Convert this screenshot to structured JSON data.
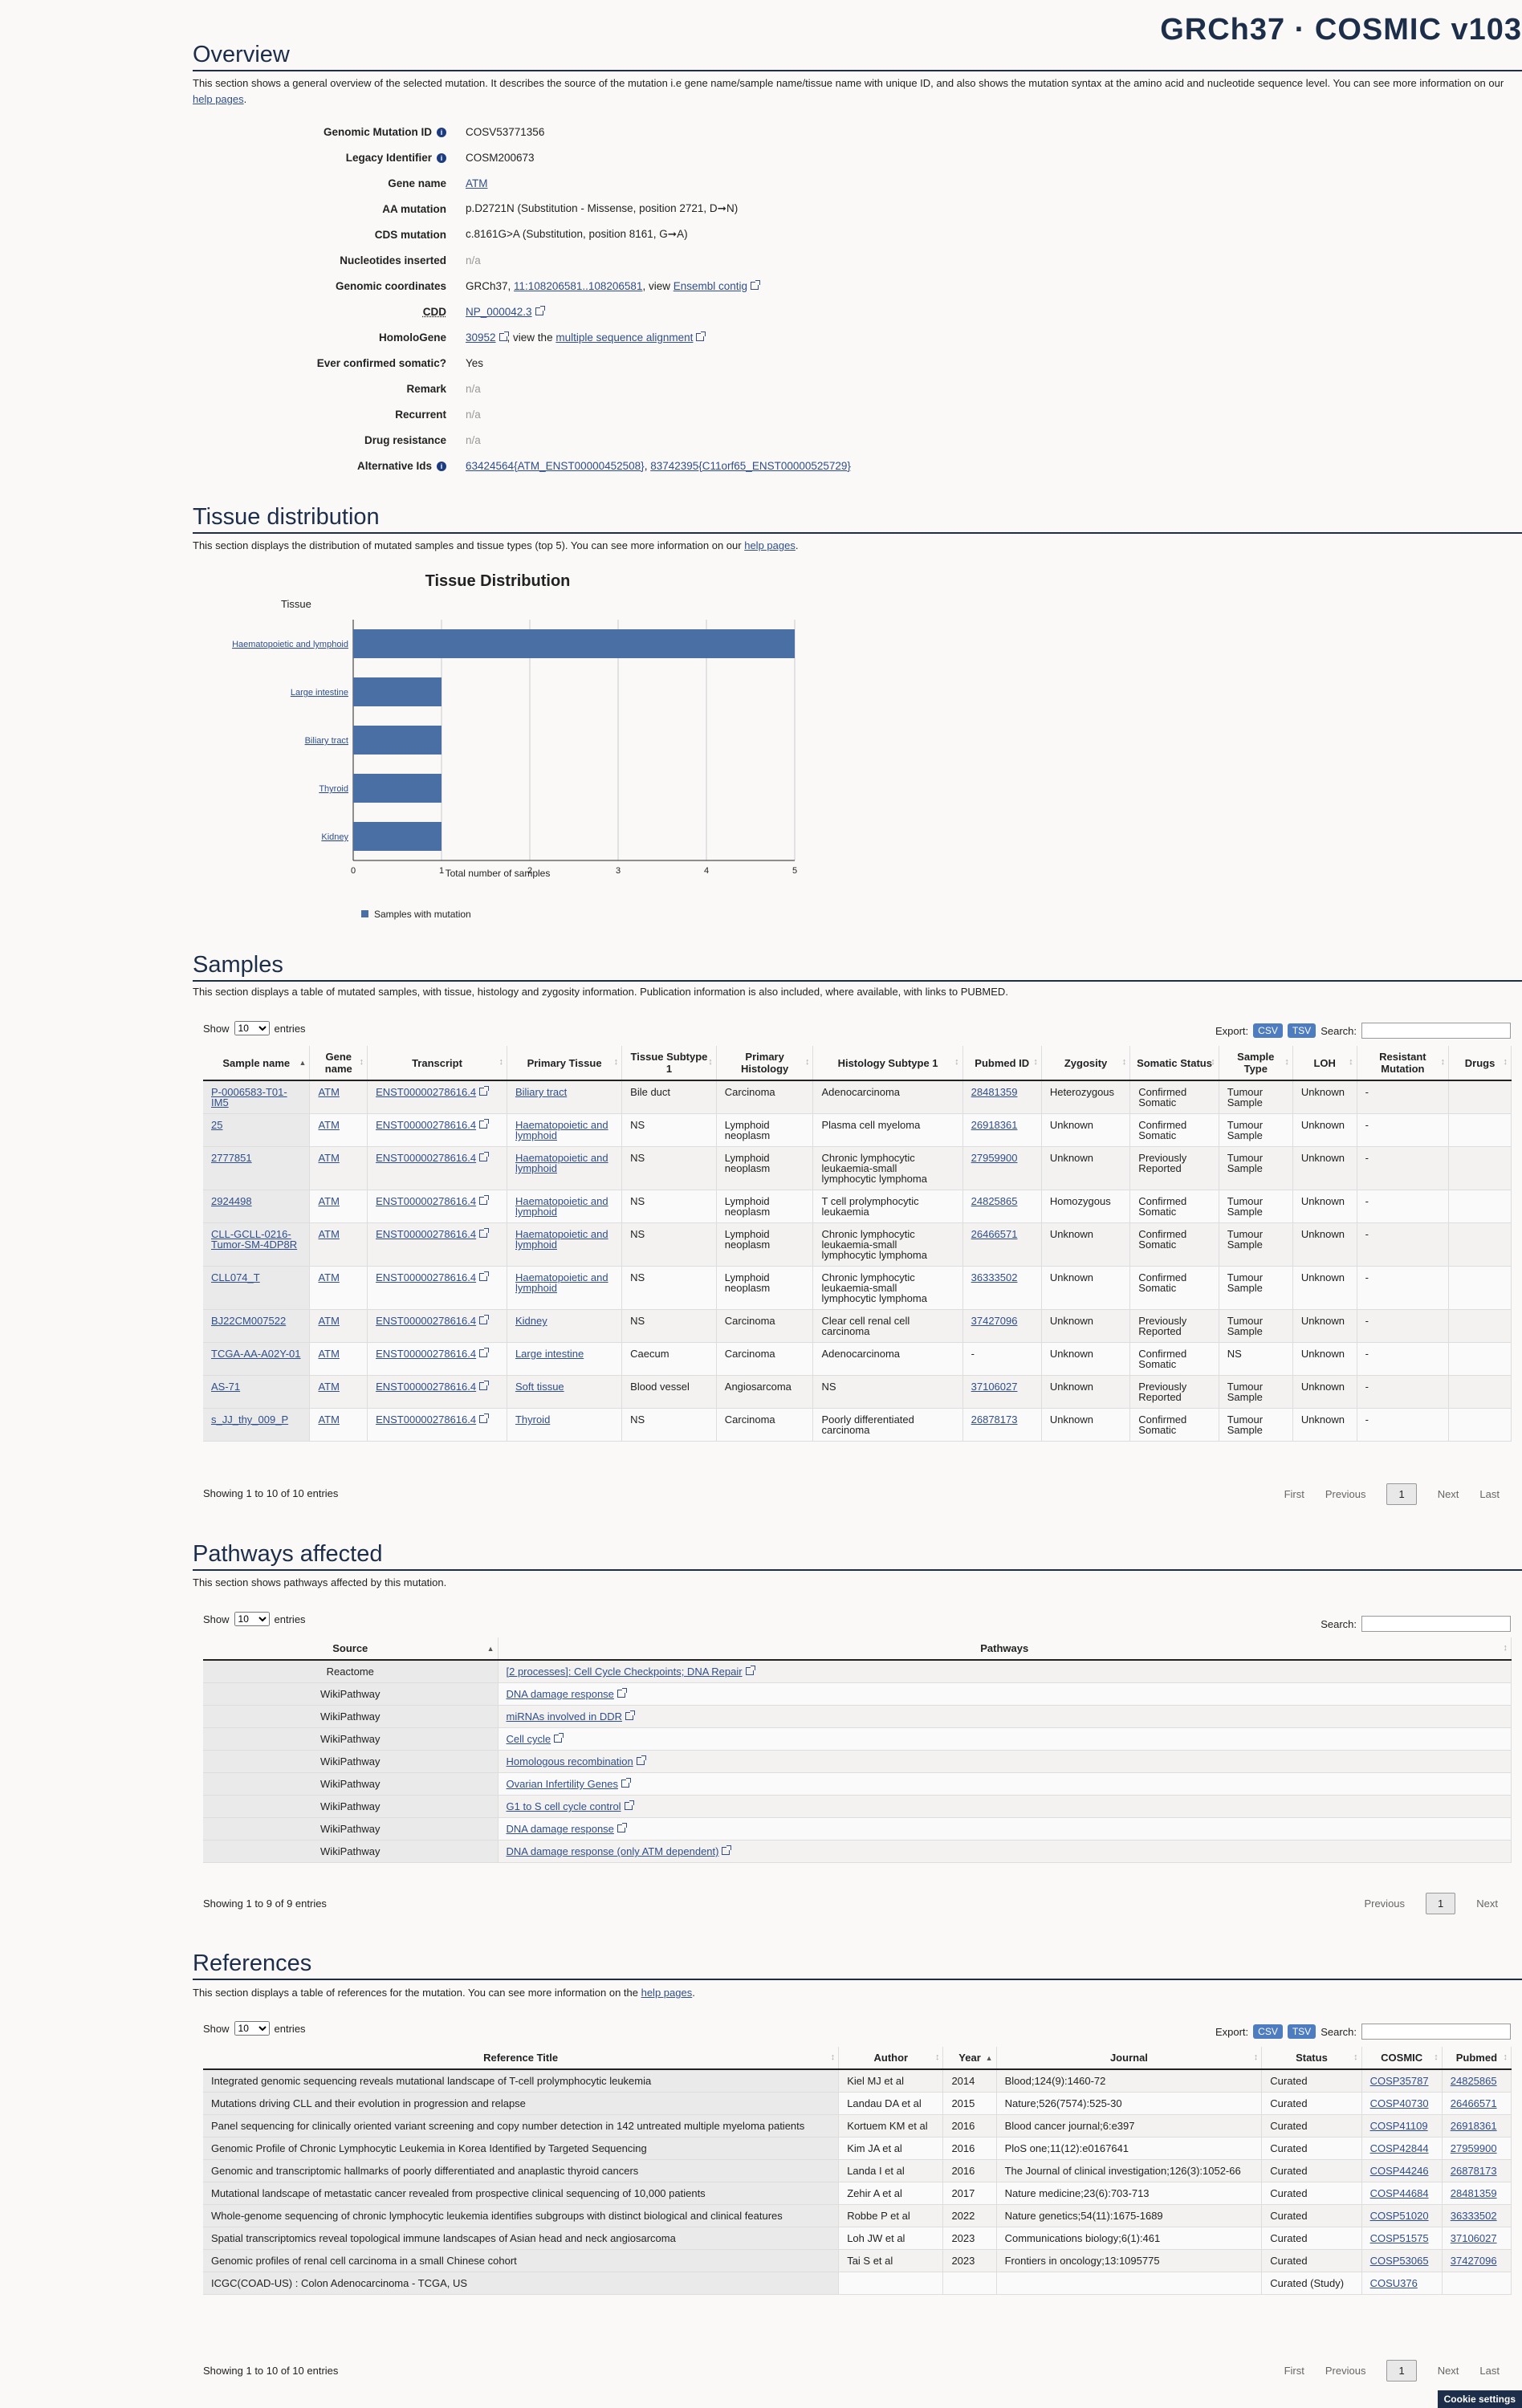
{
  "brand": "GRCh37 · COSMIC v103",
  "overview": {
    "title": "Overview",
    "description": "This section shows a general overview of the selected mutation. It describes the source of the mutation i.e gene name/sample name/tissue name with unique ID, and also shows the mutation syntax at the amino acid and nucleotide sequence level. You can see more information on our ",
    "help_link": "help pages",
    "genomic_mutation_id_label": "Genomic Mutation ID",
    "genomic_mutation_id": "COSV53771356",
    "legacy_identifier_label": "Legacy Identifier",
    "legacy_identifier": "COSM200673",
    "gene_name_label": "Gene name",
    "gene_name": "ATM",
    "aa_mutation_label": "AA mutation",
    "aa_mutation": "p.D2721N (Substitution - Missense, position 2721, D➞N)",
    "cds_mutation_label": "CDS mutation",
    "cds_mutation": "c.8161G>A (Substitution, position 8161, G➞A)",
    "nucleotides_inserted_label": "Nucleotides inserted",
    "nucleotides_inserted": "n/a",
    "genomic_coordinates_label": "Genomic coordinates",
    "genomic_coordinates_prefix": "GRCh37, ",
    "genomic_coordinates_link": "11:108206581..108206581",
    "genomic_coordinates_mid": ", view ",
    "ensembl_link": "Ensembl contig",
    "cdd_label": "CDD",
    "cdd_link": "NP_000042.3",
    "homologene_label": "HomoloGene",
    "homologene_link": "30952",
    "homologene_mid": ", view the ",
    "msa_link": "multiple sequence alignment",
    "ever_confirmed_label": "Ever confirmed somatic?",
    "ever_confirmed": "Yes",
    "remark_label": "Remark",
    "remark": "n/a",
    "recurrent_label": "Recurrent",
    "recurrent": "n/a",
    "drug_resistance_label": "Drug resistance",
    "drug_resistance": "n/a",
    "alternative_ids_label": "Alternative Ids",
    "alternative_id_1": "63424564{ATM_ENST00000452508}",
    "alternative_id_sep": ", ",
    "alternative_id_2": "83742395{C11orf65_ENST00000525729}"
  },
  "tissue": {
    "title": "Tissue distribution",
    "description": "This section displays the distribution of mutated samples and tissue types (top 5). You can see more information on our ",
    "help_link": "help pages",
    "period": "."
  },
  "chart_data": {
    "type": "bar",
    "orientation": "horizontal",
    "title": "Tissue Distribution",
    "ylabel": "Tissue",
    "xlabel": "Total number of samples",
    "categories": [
      "Haematopoietic and lymphoid",
      "Large intestine",
      "Biliary tract",
      "Thyroid",
      "Kidney"
    ],
    "series": [
      {
        "name": "Samples with mutation",
        "values": [
          5,
          1,
          1,
          1,
          1
        ]
      }
    ],
    "xlim": [
      0,
      5
    ],
    "ticks": [
      "0",
      "1",
      "2",
      "3",
      "4",
      "5"
    ],
    "legend_position": "bottom-left",
    "color": "#4a6fa5"
  },
  "samples": {
    "title": "Samples",
    "description": "This section displays a table of mutated samples, with tissue, histology and zygosity information. Publication information is also included, where available, with links to PUBMED.",
    "show": "Show",
    "entries": "entries",
    "page_size": "10",
    "export": "Export:",
    "csv": "CSV",
    "tsv": "TSV",
    "search": "Search:",
    "columns": [
      "Sample name",
      "Gene name",
      "Transcript",
      "Primary Tissue",
      "Tissue Subtype 1",
      "Primary Histology",
      "Histology Subtype 1",
      "Pubmed ID",
      "Zygosity",
      "Somatic Status",
      "Sample Type",
      "LOH",
      "Resistant Mutation",
      "Drugs"
    ],
    "rows": [
      [
        "P-0006583-T01-IM5",
        "ATM",
        "ENST00000278616.4",
        "Biliary tract",
        "Bile duct",
        "Carcinoma",
        "Adenocarcinoma",
        "28481359",
        "Heterozygous",
        "Confirmed Somatic",
        "Tumour Sample",
        "Unknown",
        "-",
        ""
      ],
      [
        "25",
        "ATM",
        "ENST00000278616.4",
        "Haematopoietic and lymphoid",
        "NS",
        "Lymphoid neoplasm",
        "Plasma cell myeloma",
        "26918361",
        "Unknown",
        "Confirmed Somatic",
        "Tumour Sample",
        "Unknown",
        "-",
        ""
      ],
      [
        "2777851",
        "ATM",
        "ENST00000278616.4",
        "Haematopoietic and lymphoid",
        "NS",
        "Lymphoid neoplasm",
        "Chronic lymphocytic leukaemia-small lymphocytic lymphoma",
        "27959900",
        "Unknown",
        "Previously Reported",
        "Tumour Sample",
        "Unknown",
        "-",
        ""
      ],
      [
        "2924498",
        "ATM",
        "ENST00000278616.4",
        "Haematopoietic and lymphoid",
        "NS",
        "Lymphoid neoplasm",
        "T cell prolymphocytic leukaemia",
        "24825865",
        "Homozygous",
        "Confirmed Somatic",
        "Tumour Sample",
        "Unknown",
        "-",
        ""
      ],
      [
        "CLL-GCLL-0216-Tumor-SM-4DP8R",
        "ATM",
        "ENST00000278616.4",
        "Haematopoietic and lymphoid",
        "NS",
        "Lymphoid neoplasm",
        "Chronic lymphocytic leukaemia-small lymphocytic lymphoma",
        "26466571",
        "Unknown",
        "Confirmed Somatic",
        "Tumour Sample",
        "Unknown",
        "-",
        ""
      ],
      [
        "CLL074_T",
        "ATM",
        "ENST00000278616.4",
        "Haematopoietic and lymphoid",
        "NS",
        "Lymphoid neoplasm",
        "Chronic lymphocytic leukaemia-small lymphocytic lymphoma",
        "36333502",
        "Unknown",
        "Confirmed Somatic",
        "Tumour Sample",
        "Unknown",
        "-",
        ""
      ],
      [
        "BJ22CM007522",
        "ATM",
        "ENST00000278616.4",
        "Kidney",
        "NS",
        "Carcinoma",
        "Clear cell renal cell carcinoma",
        "37427096",
        "Unknown",
        "Previously Reported",
        "Tumour Sample",
        "Unknown",
        "-",
        ""
      ],
      [
        "TCGA-AA-A02Y-01",
        "ATM",
        "ENST00000278616.4",
        "Large intestine",
        "Caecum",
        "Carcinoma",
        "Adenocarcinoma",
        "-",
        "Unknown",
        "Confirmed Somatic",
        "NS",
        "Unknown",
        "-",
        ""
      ],
      [
        "AS-71",
        "ATM",
        "ENST00000278616.4",
        "Soft tissue",
        "Blood vessel",
        "Angiosarcoma",
        "NS",
        "37106027",
        "Unknown",
        "Previously Reported",
        "Tumour Sample",
        "Unknown",
        "-",
        ""
      ],
      [
        "s_JJ_thy_009_P",
        "ATM",
        "ENST00000278616.4",
        "Thyroid",
        "NS",
        "Carcinoma",
        "Poorly differentiated carcinoma",
        "26878173",
        "Unknown",
        "Confirmed Somatic",
        "Tumour Sample",
        "Unknown",
        "-",
        ""
      ]
    ],
    "info": "Showing 1 to 10 of 10 entries",
    "pager": {
      "first": "First",
      "previous": "Previous",
      "page": "1",
      "next": "Next",
      "last": "Last"
    }
  },
  "pathways": {
    "title": "Pathways affected",
    "description": "This section shows pathways affected by this mutation.",
    "show": "Show",
    "entries": "entries",
    "page_size": "10",
    "search": "Search:",
    "columns": [
      "Source",
      "Pathways"
    ],
    "rows": [
      [
        "Reactome",
        "[2 processes]: Cell Cycle Checkpoints; DNA Repair"
      ],
      [
        "WikiPathway",
        "DNA damage response"
      ],
      [
        "WikiPathway",
        "miRNAs involved in DDR"
      ],
      [
        "WikiPathway",
        "Cell cycle"
      ],
      [
        "WikiPathway",
        "Homologous recombination"
      ],
      [
        "WikiPathway",
        "Ovarian Infertility Genes"
      ],
      [
        "WikiPathway",
        "G1 to S cell cycle control"
      ],
      [
        "WikiPathway",
        "DNA damage response"
      ],
      [
        "WikiPathway",
        "DNA damage response (only ATM dependent)"
      ]
    ],
    "info": "Showing 1 to 9 of 9 entries",
    "pager": {
      "previous": "Previous",
      "page": "1",
      "next": "Next"
    }
  },
  "references": {
    "title": "References",
    "description": "This section displays a table of references for the mutation. You can see more information on the ",
    "help_link": "help pages",
    "period": ".",
    "show": "Show",
    "entries": "entries",
    "page_size": "10",
    "export": "Export:",
    "csv": "CSV",
    "tsv": "TSV",
    "search": "Search:",
    "columns": [
      "Reference Title",
      "Author",
      "Year",
      "Journal",
      "Status",
      "COSMIC",
      "Pubmed"
    ],
    "rows": [
      [
        "Integrated genomic sequencing reveals mutational landscape of T-cell prolymphocytic leukemia",
        "Kiel MJ et al",
        "2014",
        "Blood;124(9):1460-72",
        "Curated",
        "COSP35787",
        "24825865"
      ],
      [
        "Mutations driving CLL and their evolution in progression and relapse",
        "Landau DA et al",
        "2015",
        "Nature;526(7574):525-30",
        "Curated",
        "COSP40730",
        "26466571"
      ],
      [
        "Panel sequencing for clinically oriented variant screening and copy number detection in 142 untreated multiple myeloma patients",
        "Kortuem KM et al",
        "2016",
        "Blood cancer journal;6:e397",
        "Curated",
        "COSP41109",
        "26918361"
      ],
      [
        "Genomic Profile of Chronic Lymphocytic Leukemia in Korea Identified by Targeted Sequencing",
        "Kim JA et al",
        "2016",
        "PloS one;11(12):e0167641",
        "Curated",
        "COSP42844",
        "27959900"
      ],
      [
        "Genomic and transcriptomic hallmarks of poorly differentiated and anaplastic thyroid cancers",
        "Landa I et al",
        "2016",
        "The Journal of clinical investigation;126(3):1052-66",
        "Curated",
        "COSP44246",
        "26878173"
      ],
      [
        "Mutational landscape of metastatic cancer revealed from prospective clinical sequencing of 10,000 patients",
        "Zehir A et al",
        "2017",
        "Nature medicine;23(6):703-713",
        "Curated",
        "COSP44684",
        "28481359"
      ],
      [
        "Whole-genome sequencing of chronic lymphocytic leukemia identifies subgroups with distinct biological and clinical features",
        "Robbe P et al",
        "2022",
        "Nature genetics;54(11):1675-1689",
        "Curated",
        "COSP51020",
        "36333502"
      ],
      [
        "Spatial transcriptomics reveal topological immune landscapes of Asian head and neck angiosarcoma",
        "Loh JW et al",
        "2023",
        "Communications biology;6(1):461",
        "Curated",
        "COSP51575",
        "37106027"
      ],
      [
        "Genomic profiles of renal cell carcinoma in a small Chinese cohort",
        "Tai S et al",
        "2023",
        "Frontiers in oncology;13:1095775",
        "Curated",
        "COSP53065",
        "37427096"
      ],
      [
        "ICGC(COAD-US) : Colon Adenocarcinoma - TCGA, US",
        "",
        "",
        "",
        "Curated (Study)",
        "COSU376",
        ""
      ]
    ],
    "info": "Showing 1 to 10 of 10 entries",
    "pager": {
      "first": "First",
      "previous": "Previous",
      "page": "1",
      "next": "Next",
      "last": "Last"
    }
  },
  "cookie": "Cookie settings"
}
